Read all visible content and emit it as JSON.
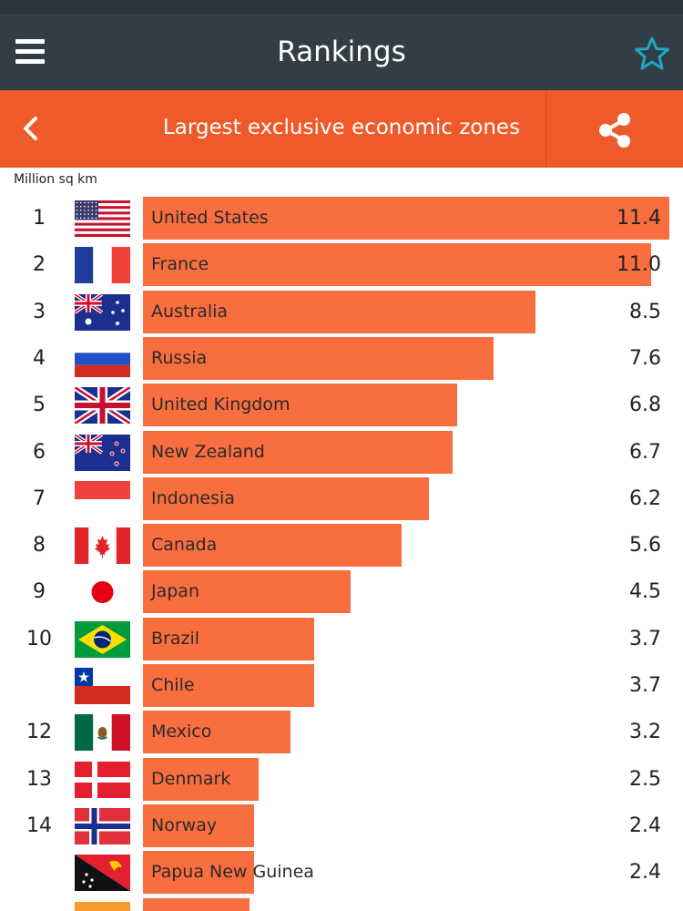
{
  "header": {
    "title": "Rankings",
    "menu_icon": "hamburger-menu-icon",
    "favorite_icon": "star-icon",
    "accent_color": "#1fa7c4"
  },
  "subheader": {
    "title": "Largest exclusive economic zones",
    "back_icon": "chevron-left-icon",
    "share_icon": "share-icon",
    "background_color": "#ef5a2a"
  },
  "unit_label": "Million sq km",
  "bar_color": "#f96e3f",
  "chart_data": {
    "type": "bar",
    "orientation": "horizontal",
    "ylabel": "Million sq km",
    "xlim": [
      0,
      11.4
    ],
    "categories": [
      "United States",
      "France",
      "Australia",
      "Russia",
      "United Kingdom",
      "New Zealand",
      "Indonesia",
      "Canada",
      "Japan",
      "Brazil",
      "Chile",
      "Mexico",
      "Denmark",
      "Norway",
      "Papua New Guinea",
      ""
    ],
    "ranks": [
      "1",
      "2",
      "3",
      "4",
      "5",
      "6",
      "7",
      "8",
      "9",
      "10",
      "",
      "12",
      "13",
      "14",
      "",
      ""
    ],
    "values": [
      11.4,
      11.0,
      8.5,
      7.6,
      6.8,
      6.7,
      6.2,
      5.6,
      4.5,
      3.7,
      3.7,
      3.2,
      2.5,
      2.4,
      2.4,
      2.3
    ],
    "value_labels": [
      "11.4",
      "11.0",
      "8.5",
      "7.6",
      "6.8",
      "6.7",
      "6.2",
      "5.6",
      "4.5",
      "3.7",
      "3.7",
      "3.2",
      "2.5",
      "2.4",
      "2.4",
      ""
    ],
    "flags": [
      "us-flag-icon",
      "france-flag-icon",
      "australia-flag-icon",
      "russia-flag-icon",
      "uk-flag-icon",
      "new-zealand-flag-icon",
      "indonesia-flag-icon",
      "canada-flag-icon",
      "japan-flag-icon",
      "brazil-flag-icon",
      "chile-flag-icon",
      "mexico-flag-icon",
      "denmark-flag-icon",
      "norway-flag-icon",
      "papua-new-guinea-flag-icon",
      "partial-flag-icon"
    ]
  }
}
